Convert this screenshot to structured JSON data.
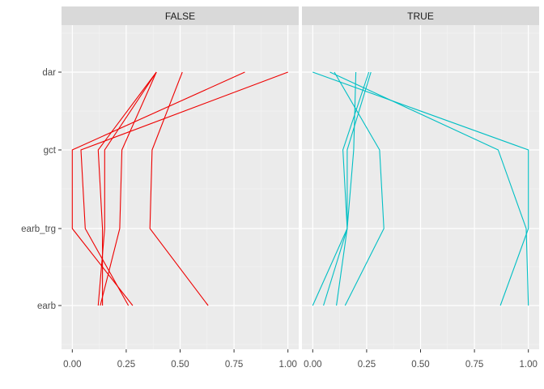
{
  "chart_data": {
    "type": "line",
    "facet_var": "facet",
    "x_axis": {
      "ticks": [
        0,
        0.25,
        0.5,
        0.75,
        1.0
      ],
      "tick_labels": [
        "0.00",
        "0.25",
        "0.50",
        "0.75",
        "1.00"
      ],
      "xlim": [
        -0.05,
        1.05
      ]
    },
    "y_axis": {
      "categories": [
        "earb",
        "earb_trg",
        "gct",
        "dar"
      ]
    },
    "panels": [
      {
        "label": "FALSE",
        "color": "#ee0000",
        "series": [
          {
            "name": "line-1",
            "values": {
              "earb": 0.63,
              "earb_trg": 0.36,
              "gct": 0.37,
              "dar": 0.51
            }
          },
          {
            "name": "line-2",
            "values": {
              "earb": 0.28,
              "earb_trg": 0.0,
              "gct": 0.0,
              "dar": 0.8
            }
          },
          {
            "name": "line-3",
            "values": {
              "earb": 0.26,
              "earb_trg": 0.06,
              "gct": 0.04,
              "dar": 1.0
            }
          },
          {
            "name": "line-4",
            "values": {
              "earb": 0.13,
              "earb_trg": 0.22,
              "gct": 0.23,
              "dar": 0.39
            }
          },
          {
            "name": "line-5",
            "values": {
              "earb": 0.12,
              "earb_trg": 0.15,
              "gct": 0.15,
              "dar": 0.39
            }
          },
          {
            "name": "line-6",
            "values": {
              "earb": 0.14,
              "earb_trg": 0.14,
              "gct": 0.12,
              "dar": 0.39
            }
          }
        ]
      },
      {
        "label": "TRUE",
        "color": "#00bfc4",
        "series": [
          {
            "name": "line-1",
            "values": {
              "earb": 1.0,
              "earb_trg": 0.99,
              "gct": 0.86,
              "dar": 0.08
            }
          },
          {
            "name": "line-2",
            "values": {
              "earb": 0.87,
              "earb_trg": 1.0,
              "gct": 1.0,
              "dar": 0.0
            }
          },
          {
            "name": "line-3",
            "values": {
              "earb": 0.15,
              "earb_trg": 0.33,
              "gct": 0.31,
              "dar": 0.1
            }
          },
          {
            "name": "line-4",
            "values": {
              "earb": 0.11,
              "earb_trg": 0.16,
              "gct": 0.14,
              "dar": 0.26
            }
          },
          {
            "name": "line-5",
            "values": {
              "earb": 0.05,
              "earb_trg": 0.16,
              "gct": 0.19,
              "dar": 0.2
            }
          },
          {
            "name": "line-6",
            "values": {
              "earb": 0.0,
              "earb_trg": 0.16,
              "gct": 0.16,
              "dar": 0.27
            }
          }
        ]
      }
    ],
    "legend": "none",
    "grid": true
  }
}
